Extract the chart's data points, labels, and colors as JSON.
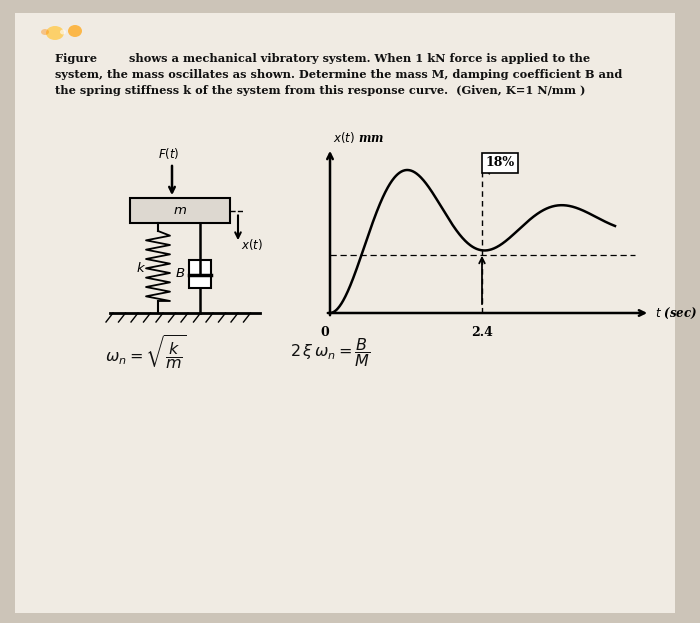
{
  "bg_color": "#d8cfc4",
  "inner_bg": "#e8e0d5",
  "font_color": "#111111",
  "title_line1": "Figure        shows a mechanical vibratory system. When 1 kN force is applied to the",
  "title_line2": "system, the mass oscillates as shown. Determine the mass M, damping coefficient B and",
  "title_line3": "the spring stiffness k of the system from this response curve.  (Given, K=1 N/mm )",
  "percent_label": "18%",
  "graph_x24": "2.4",
  "t_max": 4.5,
  "zeta": 0.18,
  "wn_factor": 2.618
}
